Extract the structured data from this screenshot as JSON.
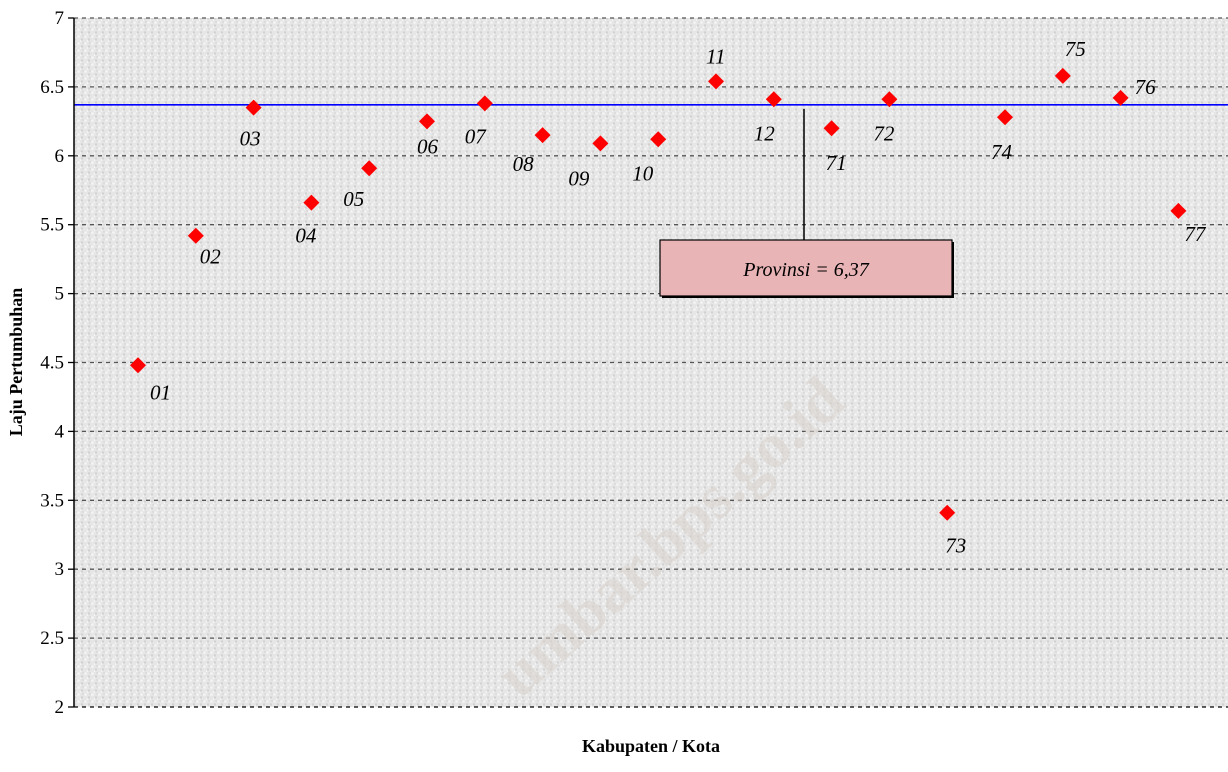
{
  "chart_data": {
    "type": "scatter",
    "title": "",
    "xlabel": "Kabupaten / Kota",
    "ylabel": "Laju Pertumbuhan",
    "ylim": [
      2,
      7
    ],
    "yticks": [
      "2",
      "2.5",
      "3",
      "3.5",
      "4",
      "4.5",
      "5",
      "5.5",
      "6",
      "6.5",
      "7"
    ],
    "grid": "horizontal dashed",
    "legend": "none",
    "point_color": "#ff0000",
    "reference_line": {
      "value": 6.37,
      "color": "#0000ff",
      "label": "Provinsi = 6,37"
    },
    "points": [
      {
        "label": "01",
        "value": 4.48
      },
      {
        "label": "02",
        "value": 5.42
      },
      {
        "label": "03",
        "value": 6.35
      },
      {
        "label": "04",
        "value": 5.66
      },
      {
        "label": "05",
        "value": 5.91
      },
      {
        "label": "06",
        "value": 6.25
      },
      {
        "label": "07",
        "value": 6.38
      },
      {
        "label": "08",
        "value": 6.15
      },
      {
        "label": "09",
        "value": 6.09
      },
      {
        "label": "10",
        "value": 6.12
      },
      {
        "label": "11",
        "value": 6.54
      },
      {
        "label": "12",
        "value": 6.41
      },
      {
        "label": "71",
        "value": 6.2
      },
      {
        "label": "72",
        "value": 6.41
      },
      {
        "label": "73",
        "value": 3.41
      },
      {
        "label": "74",
        "value": 6.28
      },
      {
        "label": "75",
        "value": 6.58
      },
      {
        "label": "76",
        "value": 6.42
      },
      {
        "label": "77",
        "value": 5.6
      }
    ],
    "watermark": "umbar.bps.go.id"
  }
}
